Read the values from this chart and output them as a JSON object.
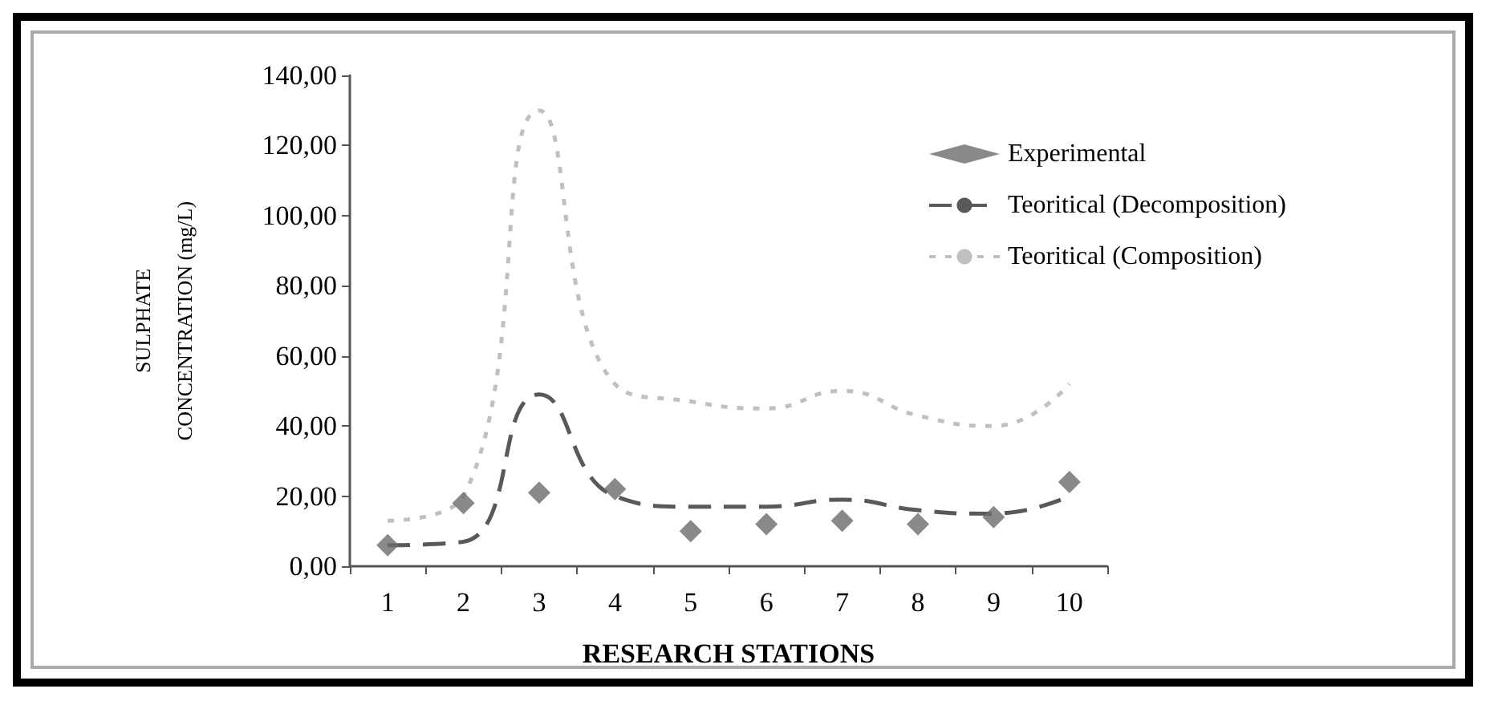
{
  "chart_data": {
    "type": "line",
    "xlabel": "RESEARCH STATIONS",
    "ylabel": "SULPHATE\nCONCENTRATION (mg/L)",
    "categories": [
      "1",
      "2",
      "3",
      "4",
      "5",
      "6",
      "7",
      "8",
      "9",
      "10"
    ],
    "series": [
      {
        "name": "Experimental",
        "type": "scatter",
        "marker": "diamond",
        "color": "#6b6b6b",
        "values": [
          6,
          18,
          21,
          22,
          10,
          12,
          13,
          12,
          14,
          24
        ]
      },
      {
        "name": "Teoritical (Decomposition)",
        "line_style": "dashed",
        "color": "#595959",
        "values": [
          6,
          7,
          49,
          20,
          17,
          17,
          19,
          16,
          15,
          20
        ]
      },
      {
        "name": "Teoritical (Composition)",
        "line_style": "dotted",
        "color": "#c0c0c0",
        "values": [
          13,
          20,
          130,
          52,
          47,
          45,
          50,
          43,
          40,
          52
        ]
      }
    ],
    "ylim": [
      0,
      140
    ],
    "yticks": [
      {
        "value": 0,
        "label": "0,00"
      },
      {
        "value": 20,
        "label": "20,00"
      },
      {
        "value": 40,
        "label": "40,00"
      },
      {
        "value": 60,
        "label": "60,00"
      },
      {
        "value": 80,
        "label": "80,00"
      },
      {
        "value": 100,
        "label": "100,00"
      },
      {
        "value": 120,
        "label": "120,00"
      },
      {
        "value": 140,
        "label": "140,00"
      }
    ],
    "grid": false,
    "legend": "top right"
  }
}
